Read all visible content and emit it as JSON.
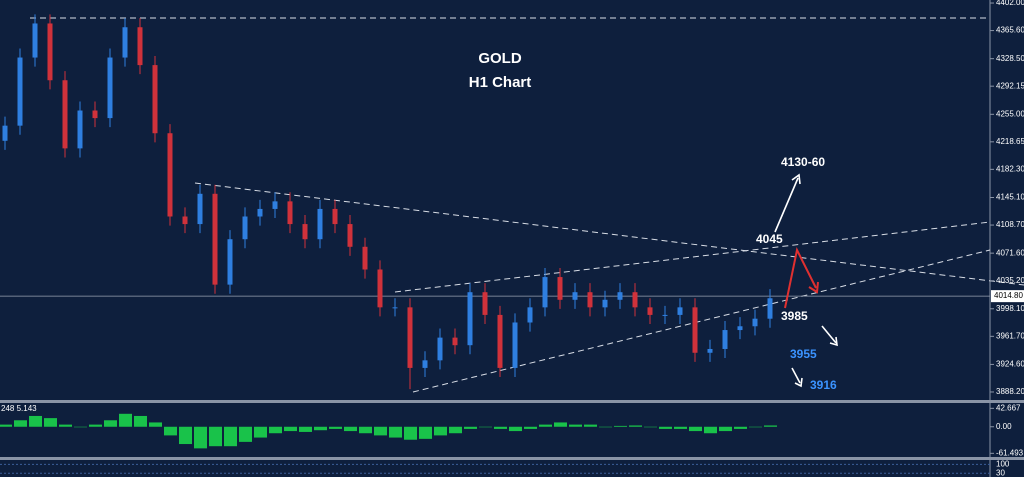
{
  "chart_data": {
    "type": "candlestick",
    "title": "GOLD",
    "subtitle": "H1 Chart",
    "open": [
      4220,
      4240,
      4330,
      4375,
      4300,
      4210,
      4260,
      4250,
      4330,
      4370,
      4320,
      4230,
      4120,
      4110,
      4150,
      4030,
      4090,
      4120,
      4130,
      4140,
      4110,
      4090,
      4130,
      4110,
      4080,
      4050,
      4000,
      4000,
      3920,
      3930,
      3960,
      3950,
      4020,
      3990,
      3920,
      3980,
      4000,
      4040,
      4010,
      4020,
      4000,
      4010,
      4020,
      4000,
      3990,
      3990,
      4000,
      3940,
      3945,
      3970,
      3975,
      3985
    ],
    "high": [
      4252,
      4342,
      4387,
      4387,
      4312,
      4272,
      4272,
      4342,
      4382,
      4382,
      4332,
      4242,
      4132,
      4162,
      4162,
      4102,
      4132,
      4142,
      4152,
      4152,
      4122,
      4142,
      4142,
      4122,
      4092,
      4062,
      4012,
      4012,
      3942,
      3972,
      3972,
      4032,
      4032,
      4002,
      3992,
      4012,
      4052,
      4052,
      4032,
      4032,
      4022,
      4032,
      4032,
      4012,
      4002,
      4012,
      4012,
      3957,
      3982,
      3987,
      3997,
      4024
    ],
    "low": [
      4208,
      4228,
      4318,
      4288,
      4198,
      4198,
      4238,
      4238,
      4318,
      4308,
      4218,
      4108,
      4098,
      4098,
      4018,
      4018,
      4078,
      4108,
      4118,
      4098,
      4078,
      4078,
      4098,
      4068,
      4038,
      3988,
      3988,
      3892,
      3908,
      3918,
      3938,
      3938,
      3978,
      3908,
      3908,
      3968,
      3988,
      3998,
      3998,
      3988,
      3988,
      3998,
      3988,
      3978,
      3978,
      3978,
      3928,
      3928,
      3933,
      3958,
      3963,
      3973
    ],
    "close": [
      4240,
      4330,
      4375,
      4300,
      4210,
      4260,
      4250,
      4330,
      4370,
      4320,
      4230,
      4120,
      4110,
      4150,
      4030,
      4090,
      4120,
      4130,
      4140,
      4110,
      4090,
      4130,
      4110,
      4080,
      4050,
      4000,
      4000,
      3920,
      3930,
      3960,
      3950,
      4020,
      3990,
      3920,
      3980,
      4000,
      4040,
      4010,
      4020,
      4000,
      4010,
      4020,
      4000,
      3990,
      3990,
      4000,
      3940,
      3945,
      3970,
      3975,
      3985,
      4012
    ],
    "up_color": "#2f7fe0",
    "down_color": "#d0323b",
    "ylim": [
      3877.6,
      4406
    ],
    "yticks": [
      {
        "value": 4402,
        "label": "4402.00"
      },
      {
        "value": 4365.6,
        "label": "4365.60"
      },
      {
        "value": 4328.5,
        "label": "4328.50"
      },
      {
        "value": 4292.15,
        "label": "4292.15"
      },
      {
        "value": 4255,
        "label": "4255.00"
      },
      {
        "value": 4218.65,
        "label": "4218.65"
      },
      {
        "value": 4182.3,
        "label": "4182.30"
      },
      {
        "value": 4145.1,
        "label": "4145.10"
      },
      {
        "value": 4108.7,
        "label": "4108.70"
      },
      {
        "value": 4071.6,
        "label": "4071.60"
      },
      {
        "value": 4035.2,
        "label": "4035.20"
      },
      {
        "value": 3998.1,
        "label": "3998.10"
      },
      {
        "value": 3961.7,
        "label": "3961.70"
      },
      {
        "value": 3924.6,
        "label": "3924.60"
      },
      {
        "value": 3888.2,
        "label": "3888.20"
      }
    ],
    "last_price": {
      "value": 4014.8,
      "label": "4014.80"
    },
    "annotations": [
      "4130-60",
      "4045",
      "3985",
      "3955",
      "3916"
    ],
    "indicator": {
      "label": "248 5.143",
      "color": "#19c24a",
      "ylim": [
        -70,
        55
      ],
      "yticks": [
        42.667,
        {
          "value": 0,
          "label": "0.00"
        },
        -61.493
      ],
      "values": [
        5,
        15,
        25,
        20,
        5,
        0,
        5,
        15,
        30,
        25,
        10,
        -20,
        -40,
        -50,
        -45,
        -45,
        -35,
        -25,
        -15,
        -10,
        -12,
        -8,
        -5,
        -10,
        -15,
        -20,
        -25,
        -30,
        -28,
        -20,
        -15,
        -5,
        0,
        -5,
        -10,
        -5,
        5,
        10,
        5,
        5,
        0,
        2,
        3,
        0,
        -5,
        -5,
        -10,
        -15,
        -10,
        -5,
        0,
        3
      ]
    },
    "oscillator": {
      "ylim": [
        0,
        135
      ],
      "yticks": [
        100,
        30
      ]
    }
  }
}
